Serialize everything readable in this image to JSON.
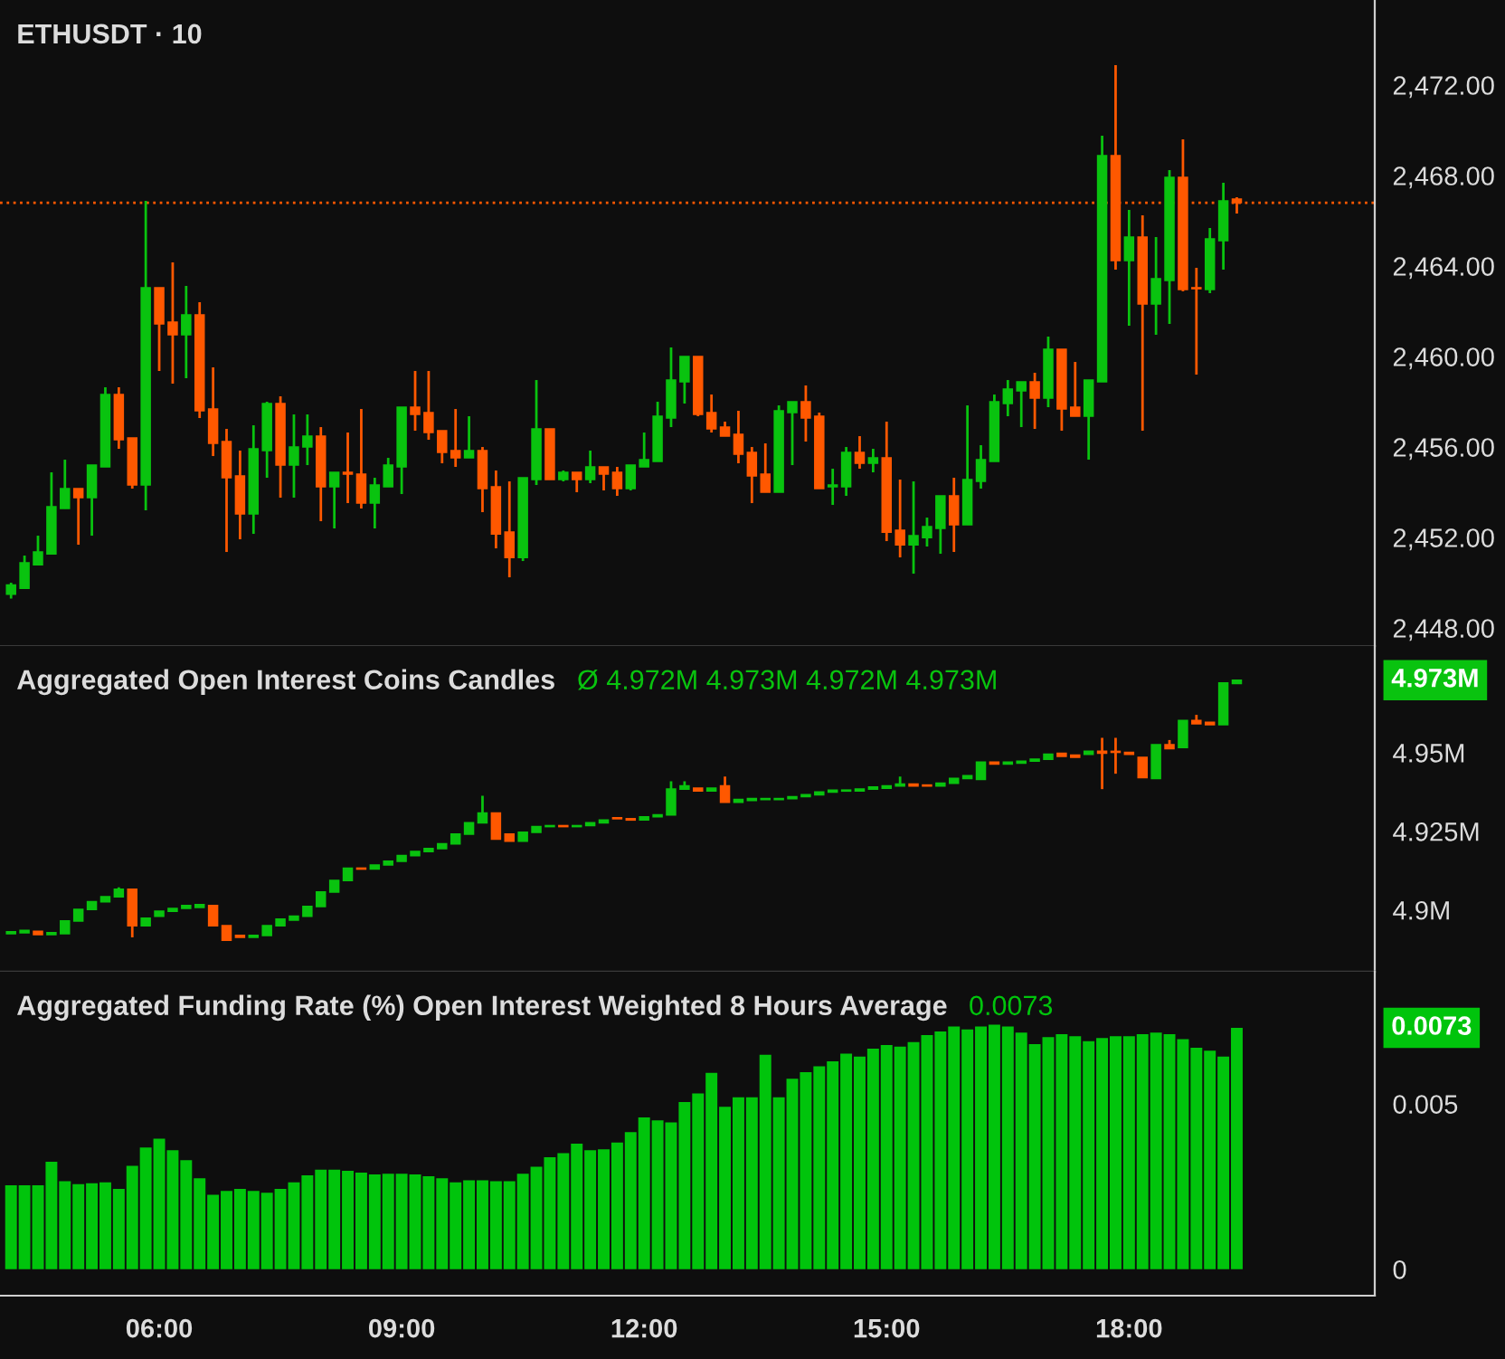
{
  "chart_data": [
    {
      "type": "candlestick",
      "title": "ETHUSDT · 10",
      "x": [
        4.1667,
        4.3333,
        4.5,
        4.6667,
        4.8333,
        5,
        5.1667,
        5.3333,
        5.5,
        5.6667,
        5.8333,
        6,
        6.1667,
        6.3333,
        6.5,
        6.6667,
        6.8333,
        7,
        7.1667,
        7.3333,
        7.5,
        7.6667,
        7.8333,
        8,
        8.1667,
        8.3333,
        8.5,
        8.6667,
        8.8333,
        9,
        9.1667,
        9.3333,
        9.5,
        9.6667,
        9.8333,
        10,
        10.1667,
        10.3333,
        10.5,
        10.6667,
        10.8333,
        11,
        11.1667,
        11.3333,
        11.5,
        11.6667,
        11.8333,
        12,
        12.1667,
        12.3333,
        12.5,
        12.6667,
        12.8333,
        13,
        13.1667,
        13.3333,
        13.5,
        13.6667,
        13.8333,
        14,
        14.1667,
        14.3333,
        14.5,
        14.6667,
        14.8333,
        15,
        15.1667,
        15.3333,
        15.5,
        15.6667,
        15.8333,
        16,
        16.1667,
        16.3333,
        16.5,
        16.6667,
        16.8333,
        17,
        17.1667,
        17.3333,
        17.5,
        17.6667,
        17.8333,
        18,
        18.1667,
        18.3333,
        18.5,
        18.6667,
        18.8333,
        19,
        19.1667,
        19.3333
      ],
      "ohlc": [
        [
          2449.5,
          2450.0,
          2449.3,
          2449.9
        ],
        [
          2449.76,
          2451.2,
          2449.76,
          2450.88
        ],
        [
          2450.8,
          2452.08,
          2450.8,
          2451.36
        ],
        [
          2451.28,
          2454.88,
          2451.28,
          2453.36
        ],
        [
          2453.28,
          2455.44,
          2453.28,
          2454.16
        ],
        [
          2454.16,
          2454.16,
          2451.68,
          2453.76
        ],
        [
          2453.76,
          2455.2,
          2452.08,
          2455.2
        ],
        [
          2455.12,
          2458.64,
          2455.12,
          2458.32
        ],
        [
          2458.32,
          2458.64,
          2455.92,
          2456.32
        ],
        [
          2456.4,
          2456.4,
          2454.16,
          2454.32
        ],
        [
          2454.32,
          2466.88,
          2453.2,
          2463.04
        ],
        [
          2463.04,
          2463.04,
          2459.36,
          2461.44
        ],
        [
          2461.52,
          2464.16,
          2458.8,
          2460.96
        ],
        [
          2460.96,
          2463.12,
          2459.04,
          2461.84
        ],
        [
          2461.84,
          2462.4,
          2457.28,
          2457.6
        ],
        [
          2457.68,
          2459.52,
          2455.6,
          2456.16
        ],
        [
          2456.24,
          2456.8,
          2451.36,
          2454.64
        ],
        [
          2454.72,
          2455.84,
          2451.92,
          2453.04
        ],
        [
          2453.04,
          2456.96,
          2452.16,
          2455.92
        ],
        [
          2455.84,
          2458.0,
          2454.64,
          2457.92
        ],
        [
          2457.92,
          2458.24,
          2453.76,
          2455.2
        ],
        [
          2455.2,
          2457.44,
          2453.76,
          2456.0
        ],
        [
          2456.0,
          2457.44,
          2455.2,
          2456.48
        ],
        [
          2456.48,
          2456.88,
          2452.72,
          2454.24
        ],
        [
          2454.24,
          2454.88,
          2452.4,
          2454.88
        ],
        [
          2454.88,
          2456.64,
          2453.52,
          2454.8
        ],
        [
          2454.8,
          2457.68,
          2453.28,
          2453.52
        ],
        [
          2453.52,
          2454.64,
          2452.4,
          2454.32
        ],
        [
          2454.24,
          2455.52,
          2454.24,
          2455.2
        ],
        [
          2455.12,
          2457.76,
          2453.92,
          2457.76
        ],
        [
          2457.76,
          2459.36,
          2456.72,
          2457.44
        ],
        [
          2457.52,
          2459.36,
          2456.32,
          2456.64
        ],
        [
          2456.72,
          2456.72,
          2455.28,
          2455.76
        ],
        [
          2455.84,
          2457.68,
          2455.12,
          2455.52
        ],
        [
          2455.52,
          2457.36,
          2455.52,
          2455.84
        ],
        [
          2455.84,
          2456.0,
          2453.12,
          2454.16
        ],
        [
          2454.24,
          2454.96,
          2451.52,
          2452.16
        ],
        [
          2452.24,
          2454.48,
          2450.24,
          2451.12
        ],
        [
          2451.12,
          2454.64,
          2450.96,
          2454.64
        ],
        [
          2454.56,
          2458.96,
          2454.32,
          2456.8
        ],
        [
          2456.8,
          2456.8,
          2454.56,
          2454.56
        ],
        [
          2454.56,
          2454.96,
          2454.48,
          2454.88
        ],
        [
          2454.88,
          2454.88,
          2454.0,
          2454.56
        ],
        [
          2454.56,
          2455.84,
          2454.4,
          2455.12
        ],
        [
          2455.12,
          2455.12,
          2454.08,
          2454.8
        ],
        [
          2454.88,
          2455.12,
          2453.84,
          2454.16
        ],
        [
          2454.16,
          2455.2,
          2454.08,
          2455.2
        ],
        [
          2455.12,
          2456.64,
          2455.12,
          2455.44
        ],
        [
          2455.36,
          2458.0,
          2455.36,
          2457.36
        ],
        [
          2457.28,
          2460.4,
          2456.88,
          2458.96
        ],
        [
          2458.88,
          2460.0,
          2457.92,
          2460.0
        ],
        [
          2460.0,
          2460.0,
          2457.36,
          2457.44
        ],
        [
          2457.52,
          2458.32,
          2456.64,
          2456.8
        ],
        [
          2456.88,
          2457.12,
          2456.48,
          2456.48
        ],
        [
          2456.56,
          2457.6,
          2455.28,
          2455.68
        ],
        [
          2455.76,
          2456.0,
          2453.52,
          2454.72
        ],
        [
          2454.8,
          2456.16,
          2454.0,
          2454.0
        ],
        [
          2454.0,
          2457.84,
          2454.0,
          2457.6
        ],
        [
          2457.52,
          2458.0,
          2455.2,
          2458.0
        ],
        [
          2458.0,
          2458.72,
          2456.24,
          2457.28
        ],
        [
          2457.36,
          2457.52,
          2454.16,
          2454.16
        ],
        [
          2454.24,
          2455.04,
          2453.44,
          2454.32
        ],
        [
          2454.24,
          2456.0,
          2453.84,
          2455.76
        ],
        [
          2455.76,
          2456.48,
          2455.04,
          2455.28
        ],
        [
          2455.28,
          2455.92,
          2454.88,
          2455.52
        ],
        [
          2455.52,
          2457.12,
          2451.84,
          2452.24
        ],
        [
          2452.32,
          2454.56,
          2451.12,
          2451.68
        ],
        [
          2451.68,
          2454.48,
          2450.4,
          2452.08
        ],
        [
          2452.0,
          2452.88,
          2451.6,
          2452.48
        ],
        [
          2452.4,
          2453.84,
          2451.28,
          2453.84
        ],
        [
          2453.84,
          2454.64,
          2451.36,
          2452.56
        ],
        [
          2452.56,
          2457.84,
          2452.56,
          2454.56
        ],
        [
          2454.48,
          2456.08,
          2454.16,
          2455.44
        ],
        [
          2455.36,
          2458.32,
          2455.36,
          2458.0
        ],
        [
          2457.92,
          2458.96,
          2457.36,
          2458.56
        ],
        [
          2458.48,
          2458.88,
          2456.88,
          2458.88
        ],
        [
          2458.88,
          2459.28,
          2456.8,
          2458.16
        ],
        [
          2458.16,
          2460.88,
          2457.76,
          2460.32
        ],
        [
          2460.32,
          2460.32,
          2456.72,
          2457.68
        ],
        [
          2457.76,
          2459.76,
          2457.36,
          2457.36
        ],
        [
          2457.36,
          2458.96,
          2455.44,
          2458.96
        ],
        [
          2458.88,
          2469.76,
          2458.88,
          2468.88
        ],
        [
          2468.88,
          2472.88,
          2463.84,
          2464.24
        ],
        [
          2464.24,
          2466.48,
          2461.36,
          2465.28
        ],
        [
          2465.28,
          2466.24,
          2456.72,
          2462.32
        ],
        [
          2462.32,
          2465.28,
          2460.96,
          2463.44
        ],
        [
          2463.36,
          2468.24,
          2461.44,
          2467.92
        ],
        [
          2467.92,
          2469.6,
          2462.88,
          2462.96
        ],
        [
          2463.04,
          2463.92,
          2459.2,
          2463.0
        ],
        [
          2462.96,
          2465.68,
          2462.8,
          2465.2
        ],
        [
          2465.12,
          2467.68,
          2463.84,
          2466.88
        ],
        [
          2466.96,
          2467.04,
          2466.32,
          2466.8
        ]
      ],
      "colors": [
        "#09c30f",
        "#09c30f",
        "#09c30f",
        "#09c30f",
        "#09c30f",
        "#ff5800",
        "#09c30f",
        "#09c30f",
        "#ff5800",
        "#ff5800",
        "#09c30f",
        "#ff5800",
        "#ff5800",
        "#09c30f",
        "#ff5800",
        "#ff5800",
        "#ff5800",
        "#ff5800",
        "#09c30f",
        "#09c30f",
        "#ff5800",
        "#09c30f",
        "#09c30f",
        "#ff5800",
        "#09c30f",
        "#ff5800",
        "#ff5800",
        "#09c30f",
        "#09c30f",
        "#09c30f",
        "#ff5800",
        "#ff5800",
        "#ff5800",
        "#ff5800",
        "#09c30f",
        "#ff5800",
        "#ff5800",
        "#ff5800",
        "#09c30f",
        "#09c30f",
        "#ff5800",
        "#09c30f",
        "#ff5800",
        "#09c30f",
        "#ff5800",
        "#ff5800",
        "#09c30f",
        "#09c30f",
        "#09c30f",
        "#09c30f",
        "#09c30f",
        "#ff5800",
        "#ff5800",
        "#ff5800",
        "#ff5800",
        "#ff5800",
        "#ff5800",
        "#09c30f",
        "#09c30f",
        "#ff5800",
        "#ff5800",
        "#09c30f",
        "#09c30f",
        "#ff5800",
        "#09c30f",
        "#ff5800",
        "#ff5800",
        "#09c30f",
        "#09c30f",
        "#09c30f",
        "#ff5800",
        "#09c30f",
        "#09c30f",
        "#09c30f",
        "#09c30f",
        "#09c30f",
        "#ff5800",
        "#09c30f",
        "#ff5800",
        "#ff5800",
        "#09c30f",
        "#09c30f",
        "#ff5800",
        "#09c30f",
        "#ff5800",
        "#09c30f",
        "#09c30f",
        "#ff5800",
        "#ff5800",
        "#09c30f",
        "#09c30f",
        "#ff5800"
      ],
      "xlim": [
        4.03,
        21.04
      ],
      "ylim": [
        2447.2,
        2475.76
      ],
      "yticks": [
        {
          "value": 2448,
          "label": "2,448.00"
        },
        {
          "value": 2452,
          "label": "2,452.00"
        },
        {
          "value": 2456,
          "label": "2,456.00"
        },
        {
          "value": 2460,
          "label": "2,460.00"
        },
        {
          "value": 2464,
          "label": "2,464.00"
        },
        {
          "value": 2468,
          "label": "2,468.00"
        },
        {
          "value": 2472,
          "label": "2,472.00"
        }
      ],
      "ref_lines": [
        {
          "axis": "y",
          "value": 2466.8,
          "color": "#ff5800",
          "line_style": "dotted"
        }
      ],
      "tick_labels": "y"
    },
    {
      "type": "candlestick",
      "title": "Aggregated Open Interest Coins Candles",
      "annotations": [
        "Ø 4.972M 4.973M 4.972M 4.973M",
        "4.973M"
      ],
      "x": [
        4.1667,
        4.3333,
        4.5,
        4.6667,
        4.8333,
        5,
        5.1667,
        5.3333,
        5.5,
        5.6667,
        5.8333,
        6,
        6.1667,
        6.3333,
        6.5,
        6.6667,
        6.8333,
        7,
        7.1667,
        7.3333,
        7.5,
        7.6667,
        7.8333,
        8,
        8.1667,
        8.3333,
        8.5,
        8.6667,
        8.8333,
        9,
        9.1667,
        9.3333,
        9.5,
        9.6667,
        9.8333,
        10,
        10.1667,
        10.3333,
        10.5,
        10.6667,
        10.8333,
        11,
        11.1667,
        11.3333,
        11.5,
        11.6667,
        11.8333,
        12,
        12.1667,
        12.3333,
        12.5,
        12.6667,
        12.8333,
        13,
        13.1667,
        13.3333,
        13.5,
        13.6667,
        13.8333,
        14,
        14.1667,
        14.3333,
        14.5,
        14.6667,
        14.8333,
        15,
        15.1667,
        15.3333,
        15.5,
        15.6667,
        15.8333,
        16,
        16.1667,
        16.3333,
        16.5,
        16.6667,
        16.8333,
        17,
        17.1667,
        17.3333,
        17.5,
        17.6667,
        17.8333,
        18,
        18.1667,
        18.3333,
        18.5,
        18.6667,
        18.8333,
        19,
        19.1667,
        19.3333
      ],
      "ohlc": [
        [
          4.8925,
          4.8931,
          4.8925,
          4.8931
        ],
        [
          4.8928,
          4.8935,
          4.8928,
          4.8935
        ],
        [
          4.8932,
          4.8932,
          4.8922,
          4.8922
        ],
        [
          4.8922,
          4.8928,
          4.8922,
          4.8928
        ],
        [
          4.8925,
          4.8965,
          4.8925,
          4.8965
        ],
        [
          4.8965,
          4.9002,
          4.8965,
          4.9002
        ],
        [
          4.9002,
          4.9026,
          4.9002,
          4.9026
        ],
        [
          4.9026,
          4.9042,
          4.9026,
          4.9042
        ],
        [
          4.9042,
          4.9072,
          4.9042,
          4.9066
        ],
        [
          4.9066,
          4.9066,
          4.8913,
          4.895
        ],
        [
          4.895,
          4.8974,
          4.895,
          4.8974
        ],
        [
          4.898,
          4.8996,
          4.898,
          4.8996
        ],
        [
          4.8996,
          4.9005,
          4.8996,
          4.9005
        ],
        [
          4.9005,
          4.9014,
          4.9005,
          4.9014
        ],
        [
          4.9008,
          4.9017,
          4.9008,
          4.9017
        ],
        [
          4.9014,
          4.9014,
          4.895,
          4.895
        ],
        [
          4.895,
          4.895,
          4.8904,
          4.8904
        ],
        [
          4.8919,
          4.8919,
          4.8913,
          4.8913
        ],
        [
          4.8913,
          4.8919,
          4.8913,
          4.8919
        ],
        [
          4.8919,
          4.895,
          4.8919,
          4.895
        ],
        [
          4.895,
          4.8971,
          4.895,
          4.8971
        ],
        [
          4.8968,
          4.898,
          4.8968,
          4.898
        ],
        [
          4.898,
          4.9011,
          4.898,
          4.9011
        ],
        [
          4.9011,
          4.9057,
          4.9011,
          4.9057
        ],
        [
          4.9057,
          4.9094,
          4.9057,
          4.9094
        ],
        [
          4.9094,
          4.9133,
          4.9094,
          4.9133
        ],
        [
          4.9133,
          4.9133,
          4.913,
          4.913
        ],
        [
          4.913,
          4.9143,
          4.913,
          4.9143
        ],
        [
          4.9143,
          4.9155,
          4.9143,
          4.9155
        ],
        [
          4.9155,
          4.9173,
          4.9155,
          4.9173
        ],
        [
          4.9173,
          4.9186,
          4.9173,
          4.9186
        ],
        [
          4.9186,
          4.9195,
          4.9186,
          4.9195
        ],
        [
          4.9195,
          4.921,
          4.9195,
          4.921
        ],
        [
          4.921,
          4.9241,
          4.921,
          4.9241
        ],
        [
          4.9241,
          4.9277,
          4.9241,
          4.9277
        ],
        [
          4.9277,
          4.9363,
          4.9277,
          4.9308
        ],
        [
          4.9308,
          4.9308,
          4.9225,
          4.9225
        ],
        [
          4.9241,
          4.9241,
          4.9219,
          4.9219
        ],
        [
          4.9219,
          4.9247,
          4.9219,
          4.9247
        ],
        [
          4.9247,
          4.9265,
          4.9247,
          4.9265
        ],
        [
          4.9265,
          4.9268,
          4.9265,
          4.9268
        ],
        [
          4.9268,
          4.9268,
          4.9265,
          4.9265
        ],
        [
          4.9265,
          4.9268,
          4.9265,
          4.9268
        ],
        [
          4.9268,
          4.9277,
          4.9268,
          4.9277
        ],
        [
          4.9277,
          4.9286,
          4.9277,
          4.9286
        ],
        [
          4.9293,
          4.9293,
          4.929,
          4.929
        ],
        [
          4.929,
          4.929,
          4.9286,
          4.9286
        ],
        [
          4.9286,
          4.9296,
          4.9286,
          4.9296
        ],
        [
          4.9296,
          4.9302,
          4.9296,
          4.9302
        ],
        [
          4.9302,
          4.9409,
          4.9302,
          4.9384
        ],
        [
          4.9384,
          4.9409,
          4.9384,
          4.9394
        ],
        [
          4.9387,
          4.9387,
          4.9378,
          4.9378
        ],
        [
          4.9378,
          4.9387,
          4.9378,
          4.9387
        ],
        [
          4.9394,
          4.9424,
          4.9342,
          4.9342
        ],
        [
          4.9342,
          4.9351,
          4.9342,
          4.9351
        ],
        [
          4.9348,
          4.9354,
          4.9348,
          4.9354
        ],
        [
          4.9351,
          4.9354,
          4.9351,
          4.9354
        ],
        [
          4.9351,
          4.9354,
          4.9351,
          4.9354
        ],
        [
          4.9354,
          4.936,
          4.9354,
          4.936
        ],
        [
          4.936,
          4.9366,
          4.936,
          4.9366
        ],
        [
          4.9366,
          4.9375,
          4.9366,
          4.9375
        ],
        [
          4.9375,
          4.9381,
          4.9375,
          4.9381
        ],
        [
          4.9378,
          4.9381,
          4.9378,
          4.9381
        ],
        [
          4.9378,
          4.9384,
          4.9378,
          4.9384
        ],
        [
          4.9384,
          4.9391,
          4.9384,
          4.9391
        ],
        [
          4.9387,
          4.9394,
          4.9387,
          4.9394
        ],
        [
          4.9394,
          4.9424,
          4.9394,
          4.94
        ],
        [
          4.94,
          4.94,
          4.9394,
          4.9394
        ],
        [
          4.9397,
          4.9397,
          4.9394,
          4.9394
        ],
        [
          4.9394,
          4.9403,
          4.9394,
          4.9403
        ],
        [
          4.9403,
          4.9418,
          4.9403,
          4.9418
        ],
        [
          4.9418,
          4.9427,
          4.9418,
          4.9427
        ],
        [
          4.9415,
          4.947,
          4.9415,
          4.947
        ],
        [
          4.947,
          4.947,
          4.9464,
          4.9464
        ],
        [
          4.9464,
          4.947,
          4.9464,
          4.947
        ],
        [
          4.9467,
          4.9473,
          4.9467,
          4.9473
        ],
        [
          4.9473,
          4.9479,
          4.9473,
          4.9479
        ],
        [
          4.9479,
          4.9495,
          4.9479,
          4.9495
        ],
        [
          4.9498,
          4.9498,
          4.9488,
          4.9488
        ],
        [
          4.9492,
          4.9492,
          4.9485,
          4.9485
        ],
        [
          4.9495,
          4.9504,
          4.9495,
          4.9504
        ],
        [
          4.9504,
          4.9547,
          4.9384,
          4.9498
        ],
        [
          4.9504,
          4.9547,
          4.9433,
          4.9501
        ],
        [
          4.9501,
          4.9501,
          4.9495,
          4.9495
        ],
        [
          4.9485,
          4.9485,
          4.9421,
          4.9421
        ],
        [
          4.9418,
          4.9525,
          4.9418,
          4.9525
        ],
        [
          4.9525,
          4.954,
          4.9513,
          4.9513
        ],
        [
          4.9516,
          4.9602,
          4.9516,
          4.9602
        ],
        [
          4.9602,
          4.962,
          4.9592,
          4.9592
        ],
        [
          4.9596,
          4.9596,
          4.9589,
          4.9589
        ],
        [
          4.9589,
          4.9721,
          4.9589,
          4.9721
        ],
        [
          4.972,
          4.973,
          4.972,
          4.973
        ]
      ],
      "colors": [
        "#09c30f",
        "#09c30f",
        "#ff5800",
        "#09c30f",
        "#09c30f",
        "#09c30f",
        "#09c30f",
        "#09c30f",
        "#09c30f",
        "#ff5800",
        "#09c30f",
        "#09c30f",
        "#09c30f",
        "#09c30f",
        "#09c30f",
        "#ff5800",
        "#ff5800",
        "#ff5800",
        "#09c30f",
        "#09c30f",
        "#09c30f",
        "#09c30f",
        "#09c30f",
        "#09c30f",
        "#09c30f",
        "#09c30f",
        "#ff5800",
        "#09c30f",
        "#09c30f",
        "#09c30f",
        "#09c30f",
        "#09c30f",
        "#09c30f",
        "#09c30f",
        "#09c30f",
        "#09c30f",
        "#ff5800",
        "#ff5800",
        "#09c30f",
        "#09c30f",
        "#09c30f",
        "#ff5800",
        "#09c30f",
        "#09c30f",
        "#09c30f",
        "#ff5800",
        "#ff5800",
        "#09c30f",
        "#09c30f",
        "#09c30f",
        "#09c30f",
        "#ff5800",
        "#09c30f",
        "#ff5800",
        "#09c30f",
        "#09c30f",
        "#09c30f",
        "#09c30f",
        "#09c30f",
        "#09c30f",
        "#09c30f",
        "#09c30f",
        "#09c30f",
        "#09c30f",
        "#09c30f",
        "#09c30f",
        "#09c30f",
        "#ff5800",
        "#ff5800",
        "#09c30f",
        "#09c30f",
        "#09c30f",
        "#09c30f",
        "#ff5800",
        "#09c30f",
        "#09c30f",
        "#09c30f",
        "#09c30f",
        "#ff5800",
        "#ff5800",
        "#09c30f",
        "#ff5800",
        "#ff5800",
        "#ff5800",
        "#ff5800",
        "#09c30f",
        "#ff5800",
        "#09c30f",
        "#ff5800",
        "#ff5800",
        "#09c30f",
        "#09c30f"
      ],
      "xlim": [
        4.03,
        21.04
      ],
      "ylim": [
        4.8804,
        4.9839
      ],
      "yticks": [
        {
          "value": 4.9,
          "label": "4.9M"
        },
        {
          "value": 4.925,
          "label": "4.925M"
        },
        {
          "value": 4.95,
          "label": "4.95M"
        }
      ],
      "tick_labels": "y"
    },
    {
      "type": "bar",
      "title": "Aggregated Funding Rate (%) Open Interest Weighted 8 Hours Average",
      "annotations": [
        "0.0073",
        "0.0073"
      ],
      "x": [
        4.1667,
        4.3333,
        4.5,
        4.6667,
        4.8333,
        5,
        5.1667,
        5.3333,
        5.5,
        5.6667,
        5.8333,
        6,
        6.1667,
        6.3333,
        6.5,
        6.6667,
        6.8333,
        7,
        7.1667,
        7.3333,
        7.5,
        7.6667,
        7.8333,
        8,
        8.1667,
        8.3333,
        8.5,
        8.6667,
        8.8333,
        9,
        9.1667,
        9.3333,
        9.5,
        9.6667,
        9.8333,
        10,
        10.1667,
        10.3333,
        10.5,
        10.6667,
        10.8333,
        11,
        11.1667,
        11.3333,
        11.5,
        11.6667,
        11.8333,
        12,
        12.1667,
        12.3333,
        12.5,
        12.6667,
        12.8333,
        13,
        13.1667,
        13.3333,
        13.5,
        13.6667,
        13.8333,
        14,
        14.1667,
        14.3333,
        14.5,
        14.6667,
        14.8333,
        15,
        15.1667,
        15.3333,
        15.5,
        15.6667,
        15.8333,
        16,
        16.1667,
        16.3333,
        16.5,
        16.6667,
        16.8333,
        17,
        17.1667,
        17.3333,
        17.5,
        17.6667,
        17.8333,
        18,
        18.1667,
        18.3333,
        18.5,
        18.6667,
        18.8333,
        19,
        19.1667,
        19.3333
      ],
      "values": [
        0.00254,
        0.00254,
        0.00254,
        0.00325,
        0.00266,
        0.00257,
        0.0026,
        0.00263,
        0.00243,
        0.00313,
        0.00368,
        0.00395,
        0.0036,
        0.0033,
        0.00275,
        0.00225,
        0.00237,
        0.00243,
        0.00237,
        0.00231,
        0.00243,
        0.00263,
        0.00284,
        0.00301,
        0.00301,
        0.00298,
        0.00292,
        0.00287,
        0.00289,
        0.00289,
        0.00287,
        0.00281,
        0.00275,
        0.00263,
        0.00269,
        0.00269,
        0.00266,
        0.00266,
        0.00289,
        0.0031,
        0.00339,
        0.00351,
        0.0038,
        0.0036,
        0.00363,
        0.00383,
        0.00415,
        0.00459,
        0.0045,
        0.00444,
        0.00506,
        0.00532,
        0.00594,
        0.00491,
        0.0052,
        0.0052,
        0.00649,
        0.0052,
        0.00576,
        0.00596,
        0.00614,
        0.00629,
        0.00652,
        0.00643,
        0.00667,
        0.00678,
        0.00673,
        0.00687,
        0.00708,
        0.00719,
        0.00734,
        0.00725,
        0.00734,
        0.0074,
        0.00734,
        0.00716,
        0.00681,
        0.00702,
        0.00711,
        0.00705,
        0.0069,
        0.00699,
        0.00705,
        0.00705,
        0.00711,
        0.00716,
        0.00711,
        0.00696,
        0.0067,
        0.00661,
        0.00643,
        0.0073
      ],
      "color": "#00c40c",
      "xlim": [
        4.03,
        21.04
      ],
      "xticks": [
        {
          "value": 6,
          "label": "06:00"
        },
        {
          "value": 9,
          "label": "09:00"
        },
        {
          "value": 12,
          "label": "12:00"
        },
        {
          "value": 15,
          "label": "15:00"
        },
        {
          "value": 18,
          "label": "18:00"
        }
      ],
      "ylim": [
        -0.0008,
        0.009
      ],
      "yticks": [
        0,
        0.005
      ]
    }
  ]
}
